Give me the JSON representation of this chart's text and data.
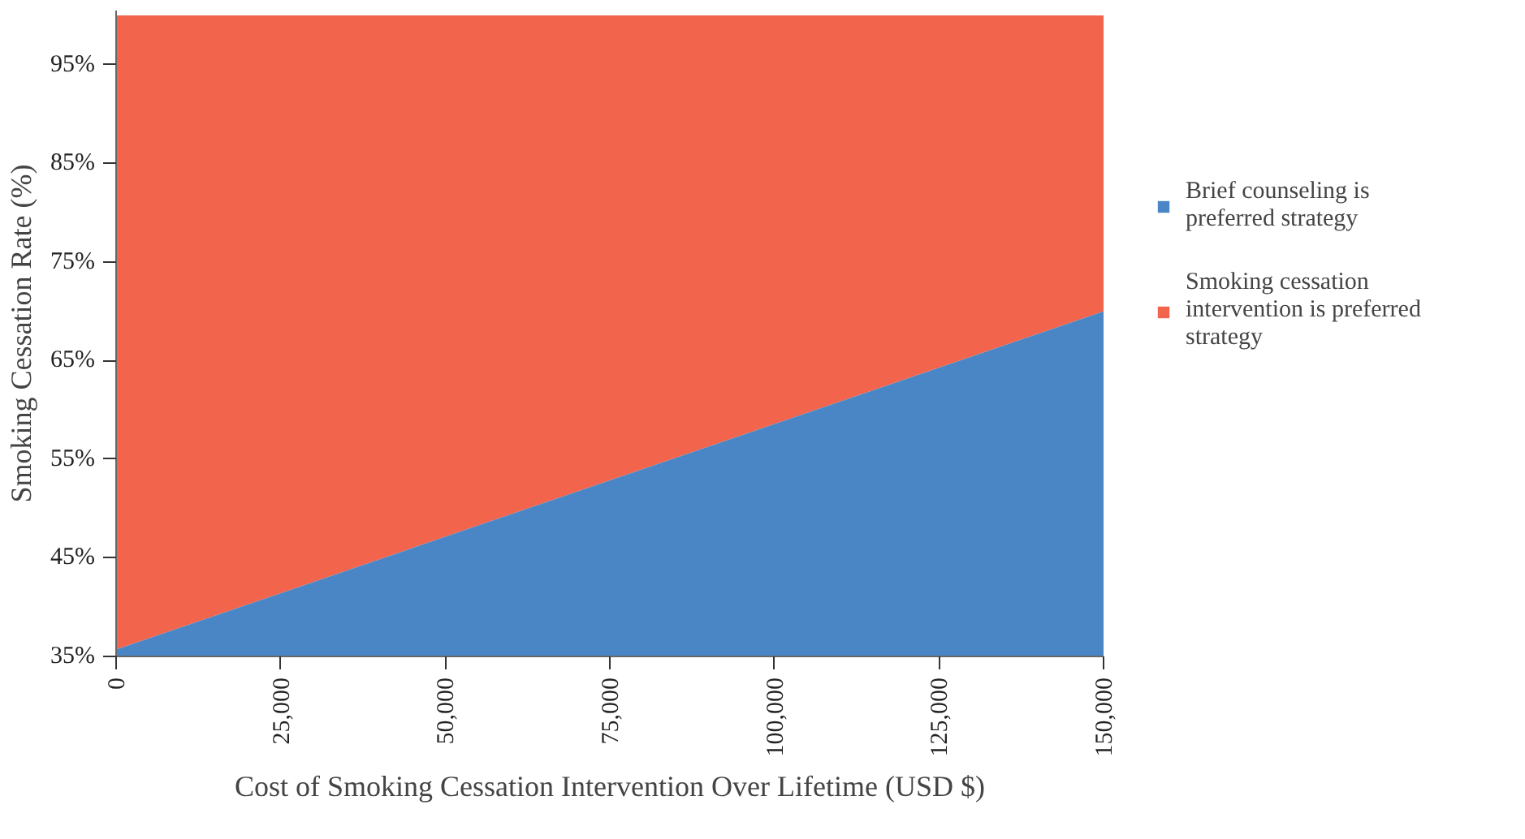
{
  "chart_data": {
    "type": "area",
    "x": [
      0,
      150000
    ],
    "series": [
      {
        "name": "Brief counseling is preferred strategy",
        "color": "#4a86c5",
        "values": [
          35.7,
          70
        ]
      },
      {
        "name": "Smoking cessation intervention is preferred strategy",
        "color": "#f2644b",
        "values": [
          100,
          100
        ]
      }
    ],
    "xlabel": "Cost of Smoking Cessation Intervention Over Lifetime (USD $)",
    "ylabel": "Smoking Cessation Rate (%)",
    "xlim": [
      0,
      150000
    ],
    "ylim": [
      35,
      100.5
    ],
    "xticks": [
      0,
      {
        "value": 25000,
        "label": "25,000"
      },
      {
        "value": 50000,
        "label": "50,000"
      },
      {
        "value": 75000,
        "label": "75,000"
      },
      {
        "value": 100000,
        "label": "100,000"
      },
      {
        "value": 125000,
        "label": "125,000"
      },
      {
        "value": 150000,
        "label": "150,000"
      }
    ],
    "yticks": [
      {
        "value": 35,
        "label": "35%"
      },
      {
        "value": 45,
        "label": "45%"
      },
      {
        "value": 55,
        "label": "55%"
      },
      {
        "value": 65,
        "label": "65%"
      },
      {
        "value": 75,
        "label": "75%"
      },
      {
        "value": 85,
        "label": "85%"
      },
      {
        "value": 95,
        "label": "95%"
      }
    ],
    "legend": "right"
  }
}
